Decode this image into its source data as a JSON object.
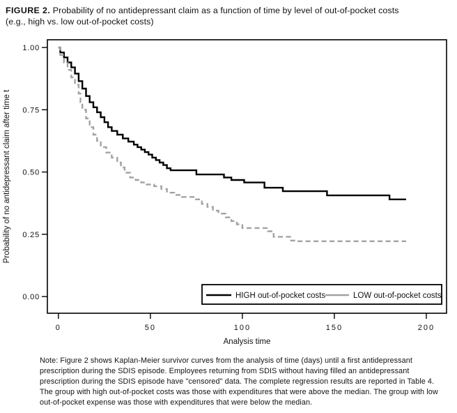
{
  "figure": {
    "label": "FIGURE 2.",
    "title": " Probability of no antidepressant claim as a function of time by level of out-of-pocket costs",
    "title_line2": "(e.g., high vs. low out-of-pocket costs)"
  },
  "chart_data": {
    "type": "line",
    "variant": "kaplan-meier-step",
    "title": "",
    "xlabel": "Analysis time",
    "ylabel": "Probability of no antidepressant claim after time t",
    "xlim": [
      -6,
      211
    ],
    "ylim": [
      -0.067,
      1.031
    ],
    "xticks": [
      0,
      50,
      100,
      150,
      200
    ],
    "xtick_labels": [
      "0",
      "50",
      "100",
      "150",
      "200"
    ],
    "yticks": [
      0,
      0.25,
      0.5,
      0.75,
      1
    ],
    "ytick_labels": [
      "0.00",
      "0.25",
      "0.50",
      "0.75",
      "1.00"
    ],
    "grid": false,
    "frame": true,
    "axis_color": "#000000",
    "legend": {
      "position": "inside-bottom-right",
      "border": true
    },
    "series": [
      {
        "name": "HIGH out-of-pocket costs",
        "color": "#000000",
        "line_style": "solid",
        "points": [
          [
            0,
            1.0
          ],
          [
            1,
            0.98
          ],
          [
            3,
            0.96
          ],
          [
            5,
            0.94
          ],
          [
            7,
            0.92
          ],
          [
            9,
            0.895
          ],
          [
            11,
            0.865
          ],
          [
            13,
            0.835
          ],
          [
            15,
            0.805
          ],
          [
            17,
            0.78
          ],
          [
            19,
            0.76
          ],
          [
            21,
            0.74
          ],
          [
            23,
            0.72
          ],
          [
            25,
            0.7
          ],
          [
            27,
            0.68
          ],
          [
            29,
            0.665
          ],
          [
            32,
            0.65
          ],
          [
            35,
            0.635
          ],
          [
            38,
            0.622
          ],
          [
            41,
            0.61
          ],
          [
            43,
            0.6
          ],
          [
            45,
            0.59
          ],
          [
            47,
            0.58
          ],
          [
            49,
            0.57
          ],
          [
            51,
            0.558
          ],
          [
            53,
            0.548
          ],
          [
            55,
            0.538
          ],
          [
            57,
            0.528
          ],
          [
            59,
            0.515
          ],
          [
            61,
            0.507
          ],
          [
            75,
            0.49
          ],
          [
            90,
            0.478
          ],
          [
            94,
            0.468
          ],
          [
            101,
            0.458
          ],
          [
            112,
            0.437
          ],
          [
            122,
            0.423
          ],
          [
            146,
            0.406
          ],
          [
            180,
            0.39
          ],
          [
            189,
            0.39
          ]
        ]
      },
      {
        "name": "LOW out-of-pocket costs",
        "color": "#a2a2a2",
        "line_style": "dashed",
        "points": [
          [
            0,
            1.0
          ],
          [
            1,
            0.97
          ],
          [
            3,
            0.94
          ],
          [
            5,
            0.91
          ],
          [
            7,
            0.88
          ],
          [
            9,
            0.85
          ],
          [
            11,
            0.815
          ],
          [
            12,
            0.78
          ],
          [
            13,
            0.75
          ],
          [
            15,
            0.715
          ],
          [
            17,
            0.68
          ],
          [
            19,
            0.65
          ],
          [
            21,
            0.625
          ],
          [
            23,
            0.6
          ],
          [
            26,
            0.578
          ],
          [
            29,
            0.558
          ],
          [
            32,
            0.538
          ],
          [
            34,
            0.518
          ],
          [
            36,
            0.497
          ],
          [
            39,
            0.478
          ],
          [
            42,
            0.468
          ],
          [
            45,
            0.458
          ],
          [
            48,
            0.45
          ],
          [
            52,
            0.443
          ],
          [
            56,
            0.432
          ],
          [
            59,
            0.417
          ],
          [
            63,
            0.408
          ],
          [
            67,
            0.4
          ],
          [
            74,
            0.39
          ],
          [
            78,
            0.372
          ],
          [
            81,
            0.36
          ],
          [
            84,
            0.345
          ],
          [
            87,
            0.333
          ],
          [
            91,
            0.318
          ],
          [
            94,
            0.303
          ],
          [
            97,
            0.29
          ],
          [
            100,
            0.275
          ],
          [
            114,
            0.262
          ],
          [
            117,
            0.24
          ],
          [
            126,
            0.225
          ],
          [
            130,
            0.222
          ],
          [
            189,
            0.222
          ]
        ]
      }
    ]
  },
  "note": {
    "text": "Note: Figure 2 shows Kaplan-Meier survivor curves from the analysis of time (days) until a first antidepressant prescription during the SDIS episode. Employees returning from SDIS without having filled an antidepressant prescription during the SDIS episode have \"censored\" data. The complete regression results are reported in Table 4. The group with high out-of-pocket costs was those with expenditures that were above the median. The group with low out-of-pocket expense was those with expenditures that were below the median."
  }
}
